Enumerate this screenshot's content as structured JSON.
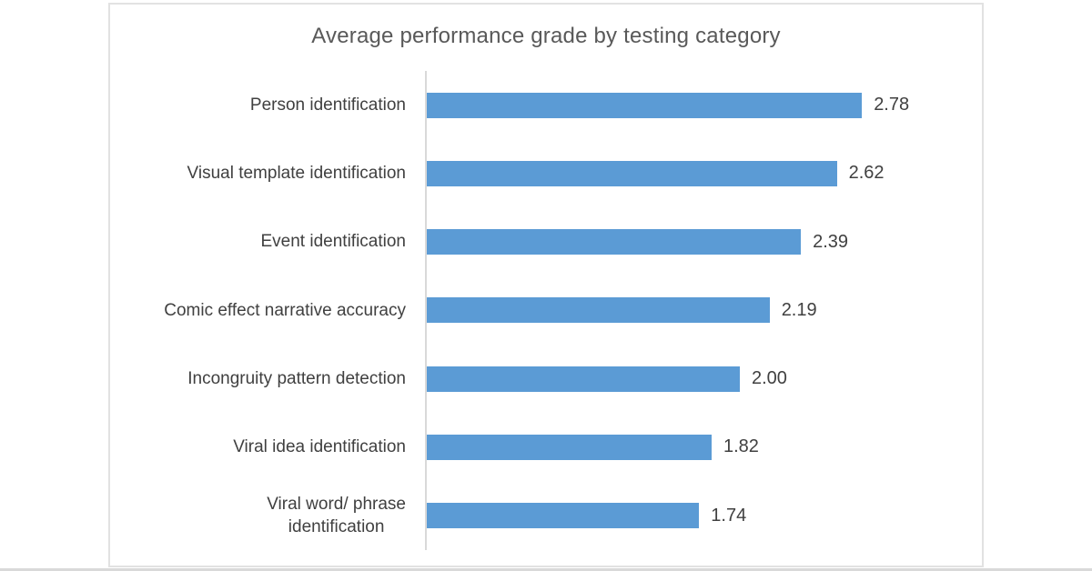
{
  "chart_data": {
    "type": "bar",
    "orientation": "horizontal",
    "title": "Average performance grade by testing category",
    "categories": [
      "Person identification",
      "Visual template identification",
      "Event identification",
      "Comic effect narrative accuracy",
      "Incongruity pattern detection",
      "Viral idea identification",
      "Viral word/ phrase identification"
    ],
    "label_display": [
      "Person identification",
      "Visual template identification",
      "Event identification",
      "Comic effect narrative accuracy",
      "Incongruity pattern detection",
      "Viral idea identification",
      "Viral word/ phrase\nidentification"
    ],
    "values": [
      2.78,
      2.62,
      2.39,
      2.19,
      2.0,
      1.82,
      1.74
    ],
    "display_values": [
      "2.78",
      "2.62",
      "2.39",
      "2.19",
      "2.00",
      "1.82",
      "1.74"
    ],
    "xlim": [
      0,
      3
    ],
    "grid": false,
    "legend": false,
    "data_labels": true,
    "bar_color": "#5b9bd5",
    "axis_line_color": "#d9d9d9",
    "title_color": "#595959",
    "label_color": "#404040"
  }
}
